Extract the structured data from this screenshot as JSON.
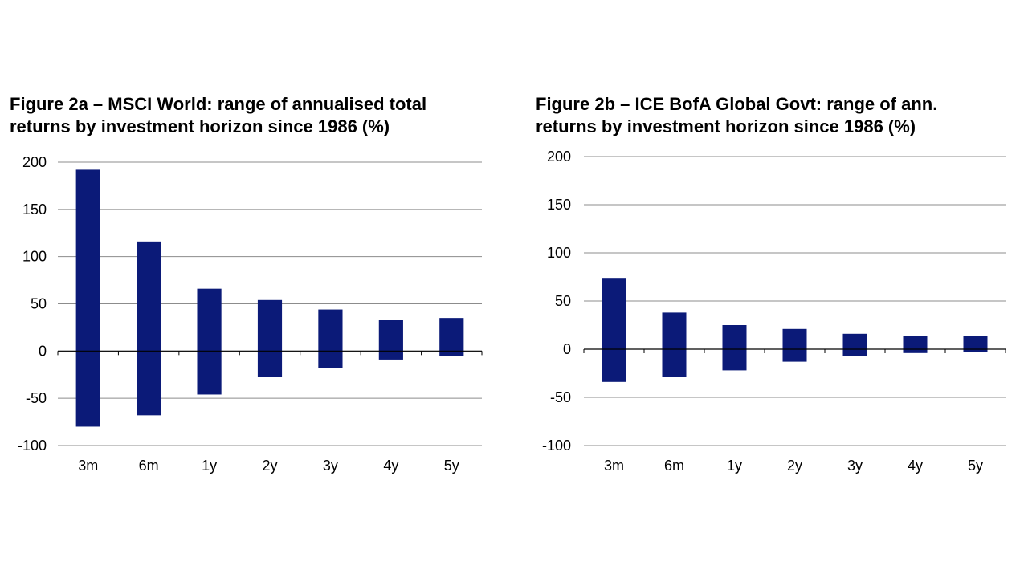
{
  "chart_data": [
    {
      "type": "bar",
      "title_line1": "Figure 2a – MSCI World: range of annualised total",
      "title_line2": "returns by investment horizon since 1986 (%)",
      "categories": [
        "3m",
        "6m",
        "1y",
        "2y",
        "3y",
        "4y",
        "5y"
      ],
      "series": [
        {
          "high": [
            192,
            116,
            66,
            54,
            44,
            33,
            35
          ],
          "low": [
            -80,
            -68,
            -46,
            -27,
            -18,
            -9,
            -5
          ]
        }
      ],
      "ylim": [
        -100,
        200
      ],
      "yticks": [
        "200",
        "150",
        "100",
        "50",
        "0",
        "-50",
        "-100"
      ],
      "grid": true,
      "bar_color": "#0b1a78"
    },
    {
      "type": "bar",
      "title_line1": "Figure 2b – ICE BofA Global Govt: range of ann.",
      "title_line2": "returns by investment horizon since 1986 (%)",
      "categories": [
        "3m",
        "6m",
        "1y",
        "2y",
        "3y",
        "4y",
        "5y"
      ],
      "series": [
        {
          "high": [
            74,
            38,
            25,
            21,
            16,
            14,
            14
          ],
          "low": [
            -34,
            -29,
            -22,
            -13,
            -7,
            -4,
            -3
          ]
        }
      ],
      "ylim": [
        -100,
        200
      ],
      "yticks": [
        "200",
        "150",
        "100",
        "50",
        "0",
        "-50",
        "-100"
      ],
      "grid": true,
      "bar_color": "#0b1a78"
    }
  ]
}
